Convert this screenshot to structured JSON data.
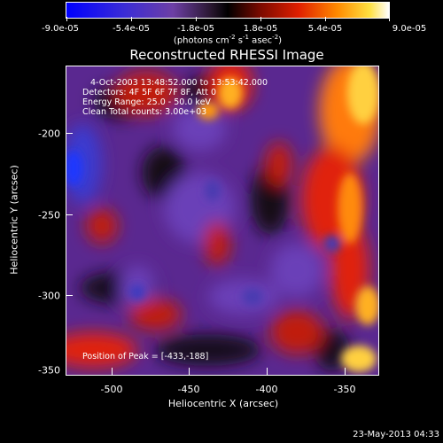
{
  "colorbar": {
    "tick_labels": [
      "-9.0e-05",
      "-5.4e-05",
      "-1.8e-05",
      "1.8e-05",
      "5.4e-05",
      "9.0e-05"
    ],
    "units_prefix": "(photons cm",
    "units_sup1": "-2",
    "units_mid1": " s",
    "units_sup2": "-1",
    "units_mid2": " asec",
    "units_sup3": "-2",
    "units_suffix": ")"
  },
  "plot": {
    "title": "Reconstructed RHESSI Image",
    "xlabel": "Heliocentric X (arcsec)",
    "ylabel": "Heliocentric Y (arcsec)",
    "x_ticks": [
      "-500",
      "-450",
      "-400",
      "-350"
    ],
    "y_ticks": [
      "-200",
      "-250",
      "-300",
      "-350"
    ],
    "annotations": {
      "time_range": "4-Oct-2003 13:48:52.000 to 13:53:42.000",
      "detectors": "Detectors: 4F 5F 6F 7F 8F, Att 0",
      "energy_range": "Energy Range: 25.0 - 50.0 keV",
      "clean": "Clean    Total counts: 3.00e+03",
      "peak": "Position of Peak = [-433,-188]"
    }
  },
  "footer": {
    "timestamp": "23-May-2013 04:33"
  }
}
